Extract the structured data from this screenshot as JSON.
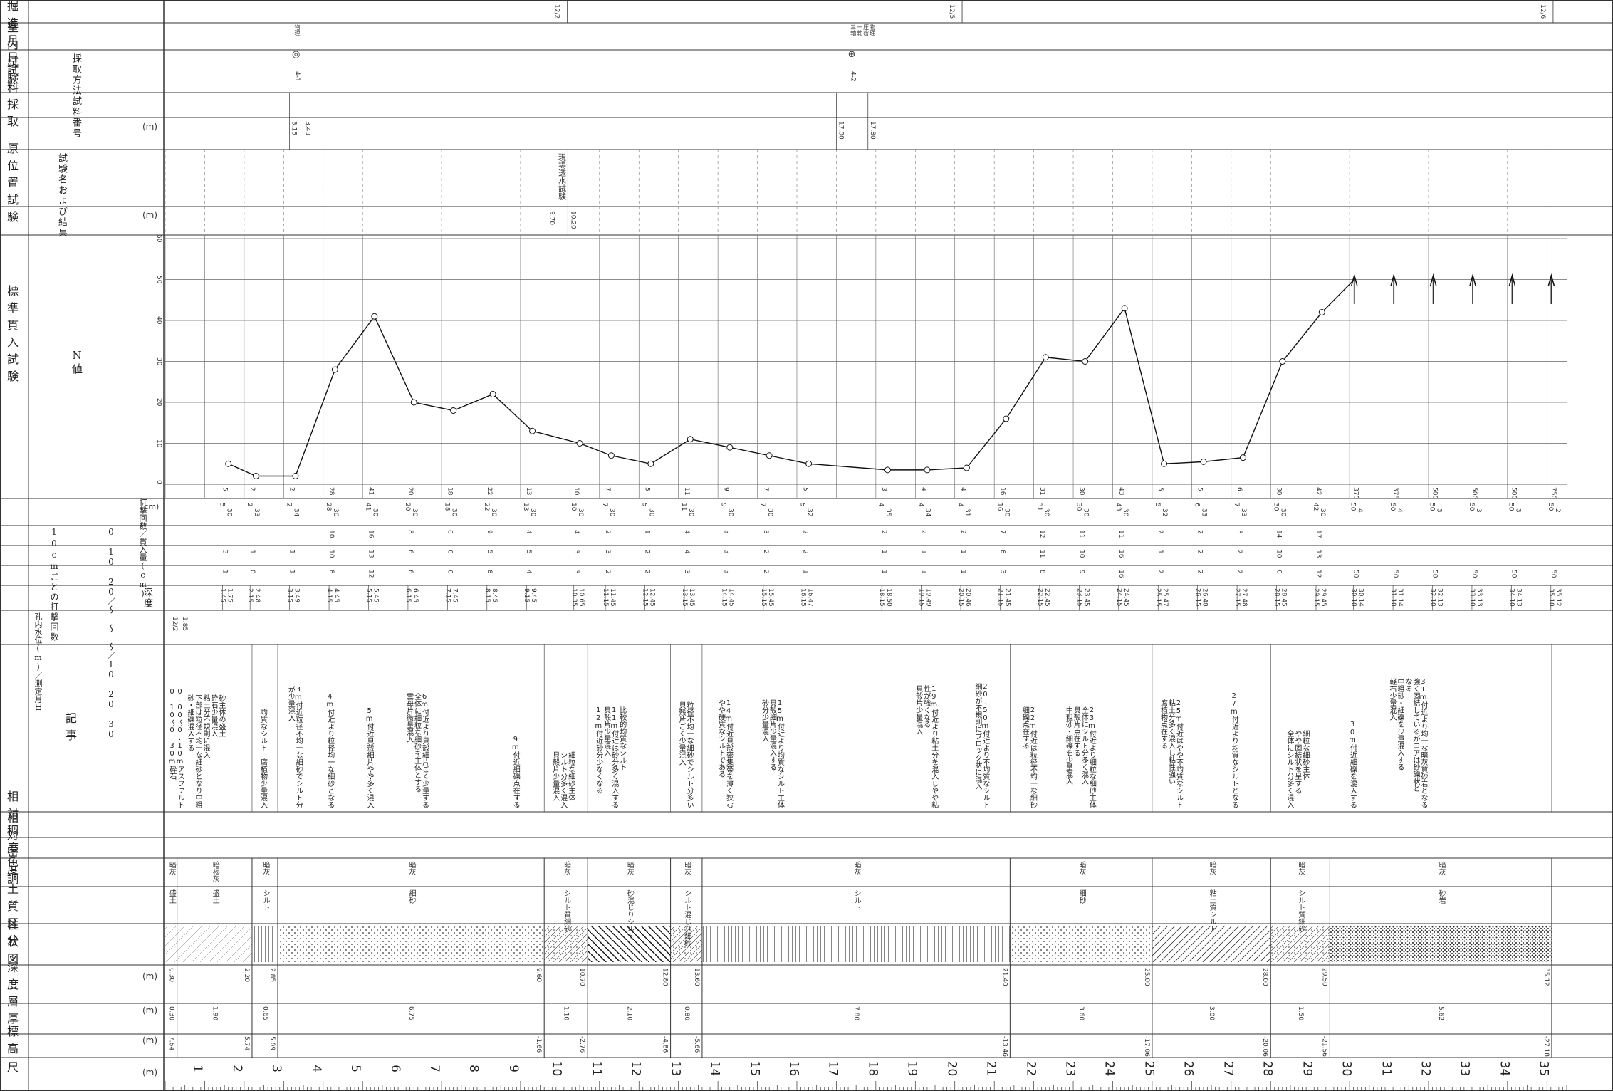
{
  "header_labels": {
    "scale": "尺",
    "elevation": "標高",
    "thickness": "層厚",
    "depth_col": "深度",
    "column": "柱状図",
    "soil": "土質区分",
    "color": "色調",
    "density": "相対密度",
    "consistency": "相対稠度",
    "remarks": "記事",
    "water_level": "孔内水位(m)／測定月日",
    "spt_depth": "深度",
    "blows_10cm": "10cmごとの打撃回数",
    "blows_10cm_ranges": "0 10 20／〜 〜 〜／10 20 30",
    "blows_total": "打撃回数／貫入量(cm)",
    "spt": "標準貫入試験",
    "nvalue": "N値",
    "insitu": "原位置試験",
    "insitu_name": "試験名および結果",
    "sample": "試料採取",
    "sample_no": "試料番号",
    "sample_method": "採取方法",
    "lab": "室内試験",
    "progress": "掘進月日"
  },
  "units": {
    "m": "(m)",
    "cm": "(cm)"
  },
  "depth_ticks": [
    "1",
    "2",
    "3",
    "4",
    "5",
    "6",
    "7",
    "8",
    "9",
    "10",
    "11",
    "12",
    "13",
    "14",
    "15",
    "16",
    "17",
    "18",
    "19",
    "20",
    "21",
    "22",
    "23",
    "24",
    "25",
    "26",
    "27",
    "28",
    "29",
    "30",
    "31",
    "32",
    "33",
    "34",
    "35"
  ],
  "layers": [
    {
      "elev": "7.64",
      "thick": "0.30",
      "depth": "0.30",
      "soil": "盛土",
      "color": "暗灰",
      "pattern": "fill"
    },
    {
      "elev": "5.74",
      "thick": "1.90",
      "depth": "2.20",
      "soil": "盛土",
      "color": "暗褐灰",
      "pattern": "fill"
    },
    {
      "elev": "5.09",
      "thick": "0.65",
      "depth": "2.85",
      "soil": "シルト",
      "color": "暗灰",
      "pattern": "silt"
    },
    {
      "elev": "-1.66",
      "thick": "6.75",
      "depth": "9.60",
      "soil": "細砂",
      "color": "暗灰",
      "pattern": "sand"
    },
    {
      "elev": "-2.76",
      "thick": "1.10",
      "depth": "10.70",
      "soil": "シルト質細砂",
      "color": "暗灰",
      "pattern": "siltysand"
    },
    {
      "elev": "-4.86",
      "thick": "2.10",
      "depth": "12.80",
      "soil": "砂混じりシルト",
      "color": "暗灰",
      "pattern": "sandysilt"
    },
    {
      "elev": "-5.66",
      "thick": "0.80",
      "depth": "13.60",
      "soil": "シルト混じり細砂",
      "color": "暗灰",
      "pattern": "siltysand"
    },
    {
      "elev": "-13.46",
      "thick": "7.80",
      "depth": "21.40",
      "soil": "シルト",
      "color": "暗灰",
      "pattern": "silt"
    },
    {
      "elev": "-17.06",
      "thick": "3.60",
      "depth": "25.00",
      "soil": "細砂",
      "color": "暗灰",
      "pattern": "sand"
    },
    {
      "elev": "-20.06",
      "thick": "3.00",
      "depth": "28.00",
      "soil": "粘土質シルト",
      "color": "暗灰",
      "pattern": "clay"
    },
    {
      "elev": "-21.56",
      "thick": "1.50",
      "depth": "29.50",
      "soil": "シルト質細砂",
      "color": "暗灰",
      "pattern": "siltysand"
    },
    {
      "elev": "-27.18",
      "thick": "5.62",
      "depth": "35.12",
      "soil": "砂岩",
      "color": "暗灰",
      "pattern": "rock"
    }
  ],
  "remarks": [
    {
      "d": 0.0,
      "text": "0.00〜0.10mアスファルト\n0.10〜0.30m砕石"
    },
    {
      "d": 0.45,
      "text": "砂主体の盛土\n砕石少量混入\n粘土分不規則に混入\n下部は粒径不均一な細砂となり中粗\n砂・細礫混入する"
    },
    {
      "d": 2.3,
      "text": "均質なシルト　腐植物少量混入"
    },
    {
      "d": 3.0,
      "text": "3m付近粒径不均一な細砂でシルト分\nが少量混入"
    },
    {
      "d": 4.0,
      "text": "4m付近より粒径均一な細砂となる"
    },
    {
      "d": 5.0,
      "text": "5m付近貝殻細片やや多く混入"
    },
    {
      "d": 6.0,
      "text": "6m付近より貝殻細片ごく少量する\n全体に細粒な細砂を主体とする\n雲母片微量混入"
    },
    {
      "d": 8.7,
      "text": "9m付近細礫点在する"
    },
    {
      "d": 9.7,
      "text": "細粒な細砂主体\nシルト分多く混入\n貝殻片少量混入"
    },
    {
      "d": 10.8,
      "text": "比較的均質なシルト\n11m付近は砂分多く混入する\n貝殻片少量混入\n12m付近砂分少なくなる"
    },
    {
      "d": 12.9,
      "text": "粒径不均一な細砂でシルト分多い\n貝殻片ごく少量混入"
    },
    {
      "d": 13.9,
      "text": "14m付近貝殻密集帯を薄く狭む\nやや硬質なシルトである"
    },
    {
      "d": 15.0,
      "text": "15m付近より均質なシルト主体\n貝殻細片少量混入する\n砂分少量混入"
    },
    {
      "d": 18.9,
      "text": "19m付近より粘土分を混入しやや粘\n性が強くなる\n貝殻片少量混入"
    },
    {
      "d": 20.4,
      "text": "20.50m付近より不均質なシルト\n細砂が不規則にブロック状に混入"
    },
    {
      "d": 21.6,
      "text": "22m付近は粒径不均一な細砂\n細礫点在する"
    },
    {
      "d": 22.7,
      "text": "23m付近より細粒な細砂主体\n全体にシルト分多く混入\n貝殻片点在する\n中粗砂・細礫を少量混入"
    },
    {
      "d": 25.1,
      "text": "25m付近はやや不均質なシルト\n粘土分多く混入し粘性強い\n腐植物点在する"
    },
    {
      "d": 26.9,
      "text": "27m付近より均質なシルトとなる"
    },
    {
      "d": 28.3,
      "text": "細粒な細砂主体\nやや固結状を呈する\n全体にシルト分多く混入"
    },
    {
      "d": 29.9,
      "text": "30m付近細礫を混入する"
    },
    {
      "d": 30.9,
      "text": "31m付近より均一な暗灰質砂岩となる\n強く固結しているがコアは砂礫状と\nなる\n中粗砂・細礫を少量混入する\n軽石少量混入"
    }
  ],
  "water_level": {
    "date": "12/2",
    "value": "1.85"
  },
  "spt": [
    {
      "depth": "1.45",
      "end": "1.75",
      "b1": "1",
      "b2": "3",
      "b3": "",
      "total": "5",
      "pen": "30",
      "n": "5"
    },
    {
      "depth": "2.15",
      "end": "2.48",
      "b1": "0",
      "b2": "1",
      "b3": "",
      "total": "2",
      "pen": "33",
      "n": "2"
    },
    {
      "depth": "3.15",
      "end": "3.49",
      "b1": "1",
      "b2": "1",
      "b3": "",
      "total": "2",
      "pen": "34",
      "n": "2"
    },
    {
      "depth": "4.15",
      "end": "4.45",
      "b1": "8",
      "b2": "10",
      "b3": "10",
      "total": "28",
      "pen": "30",
      "n": "28"
    },
    {
      "depth": "5.15",
      "end": "5.45",
      "b1": "12",
      "b2": "13",
      "b3": "16",
      "total": "41",
      "pen": "30",
      "n": "41"
    },
    {
      "depth": "6.15",
      "end": "6.45",
      "b1": "6",
      "b2": "6",
      "b3": "8",
      "total": "20",
      "pen": "30",
      "n": "20"
    },
    {
      "depth": "7.15",
      "end": "7.45",
      "b1": "6",
      "b2": "6",
      "b3": "6",
      "total": "18",
      "pen": "30",
      "n": "18"
    },
    {
      "depth": "8.15",
      "end": "8.45",
      "b1": "8",
      "b2": "5",
      "b3": "9",
      "total": "22",
      "pen": "30",
      "n": "22"
    },
    {
      "depth": "9.15",
      "end": "9.45",
      "b1": "4",
      "b2": "5",
      "b3": "4",
      "total": "13",
      "pen": "30",
      "n": "13"
    },
    {
      "depth": "10.35",
      "end": "10.65",
      "b1": "3",
      "b2": "3",
      "b3": "4",
      "total": "10",
      "pen": "30",
      "n": "10"
    },
    {
      "depth": "11.15",
      "end": "11.45",
      "b1": "2",
      "b2": "3",
      "b3": "2",
      "total": "7",
      "pen": "30",
      "n": "7"
    },
    {
      "depth": "12.15",
      "end": "12.45",
      "b1": "2",
      "b2": "2",
      "b3": "1",
      "total": "5",
      "pen": "30",
      "n": "5"
    },
    {
      "depth": "13.15",
      "end": "13.45",
      "b1": "3",
      "b2": "4",
      "b3": "4",
      "total": "11",
      "pen": "30",
      "n": "11"
    },
    {
      "depth": "14.15",
      "end": "14.45",
      "b1": "3",
      "b2": "3",
      "b3": "3",
      "total": "9",
      "pen": "30",
      "n": "9"
    },
    {
      "depth": "15.15",
      "end": "15.45",
      "b1": "2",
      "b2": "2",
      "b3": "3",
      "total": "7",
      "pen": "30",
      "n": "7"
    },
    {
      "depth": "16.15",
      "end": "16.47",
      "b1": "1",
      "b2": "2",
      "b3": "2",
      "total": "5",
      "pen": "32",
      "n": "5"
    },
    {
      "depth": "18.15",
      "end": "18.50",
      "b1": "1",
      "b2": "1",
      "b3": "2",
      "total": "4",
      "pen": "35",
      "n": "3"
    },
    {
      "depth": "19.15",
      "end": "19.49",
      "b1": "1",
      "b2": "1",
      "b3": "2",
      "total": "4",
      "pen": "34",
      "n": "4"
    },
    {
      "depth": "20.15",
      "end": "20.46",
      "b1": "1",
      "b2": "1",
      "b3": "2",
      "total": "4",
      "pen": "31",
      "n": "4"
    },
    {
      "depth": "21.15",
      "end": "21.45",
      "b1": "3",
      "b2": "6",
      "b3": "7",
      "total": "16",
      "pen": "30",
      "n": "16"
    },
    {
      "depth": "22.15",
      "end": "22.45",
      "b1": "8",
      "b2": "11",
      "b3": "12",
      "total": "31",
      "pen": "30",
      "n": "31"
    },
    {
      "depth": "23.15",
      "end": "23.45",
      "b1": "9",
      "b2": "10",
      "b3": "11",
      "total": "30",
      "pen": "30",
      "n": "30"
    },
    {
      "depth": "24.15",
      "end": "24.45",
      "b1": "16",
      "b2": "16",
      "b3": "11",
      "total": "43",
      "pen": "30",
      "n": "43"
    },
    {
      "depth": "25.15",
      "end": "25.47",
      "b1": "2",
      "b2": "1",
      "b3": "2",
      "total": "5",
      "pen": "32",
      "n": "5"
    },
    {
      "depth": "26.15",
      "end": "26.48",
      "b1": "2",
      "b2": "2",
      "b3": "2",
      "total": "6",
      "pen": "33",
      "n": "5"
    },
    {
      "depth": "27.15",
      "end": "27.48",
      "b1": "2",
      "b2": "2",
      "b3": "3",
      "total": "7",
      "pen": "33",
      "n": "6"
    },
    {
      "depth": "28.15",
      "end": "28.45",
      "b1": "6",
      "b2": "10",
      "b3": "14",
      "total": "30",
      "pen": "30",
      "n": "30"
    },
    {
      "depth": "29.15",
      "end": "29.45",
      "b1": "12",
      "b2": "13",
      "b3": "17",
      "total": "42",
      "pen": "30",
      "n": "42"
    },
    {
      "depth": "30.10",
      "end": "30.14",
      "b1": "50",
      "b2": "",
      "b3": "",
      "total": "50",
      "pen": "4",
      "n": "375"
    },
    {
      "depth": "31.10",
      "end": "31.14",
      "b1": "50",
      "b2": "",
      "b3": "",
      "total": "50",
      "pen": "4",
      "n": "375"
    },
    {
      "depth": "32.10",
      "end": "32.13",
      "b1": "50",
      "b2": "",
      "b3": "",
      "total": "50",
      "pen": "3",
      "n": "500"
    },
    {
      "depth": "33.10",
      "end": "33.13",
      "b1": "50",
      "b2": "",
      "b3": "",
      "total": "50",
      "pen": "3",
      "n": "500"
    },
    {
      "depth": "34.10",
      "end": "34.13",
      "b1": "50",
      "b2": "",
      "b3": "",
      "total": "50",
      "pen": "3",
      "n": "500"
    },
    {
      "depth": "35.10",
      "end": "35.12",
      "b1": "50",
      "b2": "",
      "b3": "",
      "total": "50",
      "pen": "2",
      "n": "750"
    }
  ],
  "chart_data": {
    "type": "line",
    "ylabel": "N値",
    "ylim": [
      0,
      60
    ],
    "y_ticks": [
      "0",
      "10",
      "20",
      "30",
      "40",
      "50",
      "60"
    ],
    "x_label": "深度 (m)",
    "xlim": [
      0,
      35.5
    ],
    "cap_value": 50,
    "x": [
      1.6,
      2.3,
      3.3,
      4.3,
      5.3,
      6.3,
      7.3,
      8.3,
      9.3,
      10.5,
      11.3,
      12.3,
      13.3,
      14.3,
      15.3,
      16.3,
      18.3,
      19.3,
      20.3,
      21.3,
      22.3,
      23.3,
      24.3,
      25.3,
      26.3,
      27.3,
      28.3,
      29.3
    ],
    "y": [
      5,
      2,
      2,
      28,
      41,
      20,
      18,
      22,
      13,
      10,
      7,
      5,
      11,
      9,
      7,
      5,
      3.5,
      3.5,
      4,
      16,
      31,
      30,
      43,
      5,
      5.5,
      6.5,
      30,
      42
    ],
    "capped_line_x": [
      29.3,
      30.12
    ],
    "capped_line_y": [
      42,
      50
    ],
    "arrows_x": [
      30.12,
      31.12,
      32.12,
      33.12,
      34.12,
      35.11
    ],
    "arrow_labels": [
      "375",
      "375",
      "500",
      "500",
      "500",
      "750"
    ]
  },
  "insitu": {
    "label": "現場透水試験",
    "from": "9.70",
    "to": "10.20"
  },
  "samples": [
    {
      "from": "3.15",
      "to": "3.49",
      "no": "4-1",
      "method": "◎",
      "lab": "物理"
    },
    {
      "from": "17.00",
      "to": "17.80",
      "no": "4-2",
      "method": "⊕",
      "lab": "物理\n圧密\n一軸\n三軸"
    }
  ],
  "progress_dates": [
    "12/2",
    "12/5",
    "12/6"
  ]
}
